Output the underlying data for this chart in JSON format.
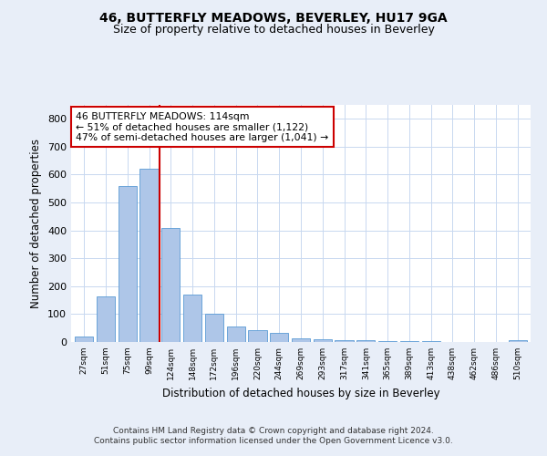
{
  "title": "46, BUTTERFLY MEADOWS, BEVERLEY, HU17 9GA",
  "subtitle": "Size of property relative to detached houses in Beverley",
  "xlabel": "Distribution of detached houses by size in Beverley",
  "ylabel": "Number of detached properties",
  "bar_labels": [
    "27sqm",
    "51sqm",
    "75sqm",
    "99sqm",
    "124sqm",
    "148sqm",
    "172sqm",
    "196sqm",
    "220sqm",
    "244sqm",
    "269sqm",
    "293sqm",
    "317sqm",
    "341sqm",
    "365sqm",
    "389sqm",
    "413sqm",
    "438sqm",
    "462sqm",
    "486sqm",
    "510sqm"
  ],
  "bar_values": [
    20,
    162,
    560,
    622,
    410,
    170,
    102,
    56,
    43,
    32,
    14,
    9,
    8,
    5,
    3,
    2,
    2,
    0,
    0,
    0,
    5
  ],
  "bar_color": "#aec6e8",
  "bar_edgecolor": "#5a9bd5",
  "vline_color": "#cc0000",
  "annotation_text": "46 BUTTERFLY MEADOWS: 114sqm\n← 51% of detached houses are smaller (1,122)\n47% of semi-detached houses are larger (1,041) →",
  "annotation_box_color": "#ffffff",
  "annotation_box_edgecolor": "#cc0000",
  "ylim": [
    0,
    850
  ],
  "yticks": [
    0,
    100,
    200,
    300,
    400,
    500,
    600,
    700,
    800
  ],
  "bg_color": "#e8eef8",
  "plot_bg_color": "#ffffff",
  "footer_text": "Contains HM Land Registry data © Crown copyright and database right 2024.\nContains public sector information licensed under the Open Government Licence v3.0.",
  "title_fontsize": 10,
  "subtitle_fontsize": 9
}
